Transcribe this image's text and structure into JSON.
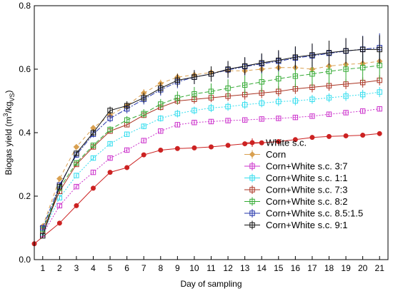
{
  "chart_data": {
    "type": "line",
    "xlabel": "Day of sampling",
    "ylabel_main": "Biogas yield (m",
    "ylabel_sup": "3",
    "ylabel_mid": "/kg",
    "ylabel_sub": "VS",
    "ylabel_end": ")",
    "xlim": [
      0.5,
      21.5
    ],
    "ylim": [
      0,
      0.8
    ],
    "xticks": [
      1,
      2,
      3,
      4,
      5,
      6,
      7,
      8,
      9,
      10,
      11,
      12,
      13,
      14,
      15,
      16,
      17,
      18,
      19,
      20,
      21
    ],
    "xtick_labels": [
      "1",
      "2",
      "3",
      "4",
      "5",
      "6",
      "7",
      "8",
      "9",
      "10",
      "11",
      "12",
      "13",
      "14",
      "15",
      "16",
      "17",
      "18",
      "19",
      "20",
      "21"
    ],
    "yticks": [
      0,
      0.2,
      0.4,
      0.6,
      0.8
    ],
    "ytick_labels": [
      "0.0",
      "0.2",
      "0.4",
      "0.6",
      "0.8"
    ],
    "legend_position": "bottom-right",
    "x": [
      0.5,
      1,
      1.5,
      2,
      2.5,
      3,
      3.5,
      4,
      4.5,
      5,
      5.5,
      6,
      6.5,
      7,
      7.5,
      8,
      8.5,
      9,
      9.5,
      10,
      10.5,
      11,
      11.5,
      12,
      12.5,
      13,
      13.5,
      14,
      14.5,
      15,
      15.5,
      16,
      16.5,
      17,
      17.5,
      18,
      18.5,
      19,
      19.5,
      20,
      20.5,
      21
    ],
    "series": [
      {
        "name": "White s.c.",
        "color": "#cc2222",
        "marker": "circle",
        "fill": true,
        "dash": "none",
        "values": [
          0.05,
          null,
          null,
          0.115,
          null,
          0.17,
          null,
          0.225,
          null,
          0.275,
          null,
          0.29,
          null,
          0.33,
          null,
          0.345,
          null,
          0.35,
          null,
          0.352,
          null,
          0.355,
          null,
          0.36,
          null,
          0.365,
          null,
          0.368,
          null,
          0.372,
          null,
          0.378,
          null,
          0.385,
          null,
          0.388,
          null,
          0.39,
          null,
          0.392,
          null,
          0.397
        ],
        "errors": [
          0.005,
          null,
          null,
          0.006,
          null,
          0.006,
          null,
          0.006,
          null,
          0.007,
          null,
          0.007,
          null,
          0.007,
          null,
          0.006,
          null,
          0.006,
          null,
          0.006,
          null,
          0.006,
          null,
          0.006,
          null,
          0.006,
          null,
          0.006,
          null,
          0.006,
          null,
          0.006,
          null,
          0.006,
          null,
          0.006,
          null,
          0.006,
          null,
          0.006,
          null,
          0.006
        ]
      },
      {
        "name": "Corn",
        "color": "#d9a050",
        "marker": "diamond",
        "fill": true,
        "dash": "5,4",
        "values": [
          null,
          0.105,
          null,
          0.255,
          null,
          0.355,
          null,
          0.415,
          null,
          0.455,
          null,
          0.485,
          null,
          0.525,
          null,
          0.555,
          null,
          0.575,
          null,
          0.582,
          null,
          0.59,
          null,
          0.595,
          null,
          0.595,
          null,
          0.6,
          null,
          0.605,
          null,
          0.605,
          null,
          0.6,
          null,
          0.61,
          null,
          0.615,
          null,
          0.618,
          null,
          0.625
        ],
        "errors": [
          null,
          0.005,
          null,
          0.008,
          null,
          0.008,
          null,
          0.008,
          null,
          0.01,
          null,
          0.012,
          null,
          0.012,
          null,
          0.012,
          null,
          0.012,
          null,
          0.012,
          null,
          0.012,
          null,
          0.012,
          null,
          0.012,
          null,
          0.012,
          null,
          0.012,
          null,
          0.012,
          null,
          0.012,
          null,
          0.012,
          null,
          0.012,
          null,
          0.012,
          null,
          0.012
        ]
      },
      {
        "name": "Corn+White s.c. 3:7",
        "color": "#cc33cc",
        "marker": "square",
        "fill": false,
        "dash": "2,2",
        "values": [
          null,
          0.08,
          null,
          0.17,
          null,
          0.23,
          null,
          0.275,
          null,
          0.32,
          null,
          0.345,
          null,
          0.375,
          null,
          0.405,
          null,
          0.425,
          null,
          0.432,
          null,
          0.435,
          null,
          0.438,
          null,
          0.44,
          null,
          0.443,
          null,
          0.445,
          null,
          0.448,
          null,
          0.452,
          null,
          0.458,
          null,
          0.463,
          null,
          0.468,
          null,
          0.475
        ],
        "errors": [
          null,
          0.005,
          null,
          0.006,
          null,
          0.006,
          null,
          0.007,
          null,
          0.008,
          null,
          0.008,
          null,
          0.008,
          null,
          0.008,
          null,
          0.008,
          null,
          0.008,
          null,
          0.008,
          null,
          0.008,
          null,
          0.008,
          null,
          0.008,
          null,
          0.008,
          null,
          0.008,
          null,
          0.008,
          null,
          0.008,
          null,
          0.008,
          null,
          0.008,
          null,
          0.008
        ]
      },
      {
        "name": "Corn+White s.c. 1:1",
        "color": "#33ddee",
        "marker": "square",
        "fill": false,
        "dash": "2,2",
        "values": [
          null,
          0.085,
          null,
          0.195,
          null,
          0.265,
          null,
          0.32,
          null,
          0.365,
          null,
          0.395,
          null,
          0.42,
          null,
          0.445,
          null,
          0.46,
          null,
          0.47,
          null,
          0.478,
          null,
          0.482,
          null,
          0.488,
          null,
          0.493,
          null,
          0.498,
          null,
          0.5,
          null,
          0.505,
          null,
          0.51,
          null,
          0.515,
          null,
          0.52,
          null,
          0.528
        ],
        "errors": [
          null,
          0.005,
          null,
          0.006,
          null,
          0.006,
          null,
          0.007,
          null,
          0.008,
          null,
          0.008,
          null,
          0.009,
          null,
          0.01,
          null,
          0.012,
          null,
          0.012,
          null,
          0.013,
          null,
          0.013,
          null,
          0.013,
          null,
          0.013,
          null,
          0.014,
          null,
          0.014,
          null,
          0.014,
          null,
          0.014,
          null,
          0.015,
          null,
          0.015,
          null,
          0.016
        ]
      },
      {
        "name": "Corn+White s.c. 7:3",
        "color": "#aa3322",
        "marker": "square",
        "fill": false,
        "dash": "none",
        "values": [
          null,
          0.09,
          null,
          0.215,
          null,
          0.3,
          null,
          0.355,
          null,
          0.405,
          null,
          0.425,
          null,
          0.455,
          null,
          0.48,
          null,
          0.5,
          null,
          0.505,
          null,
          0.51,
          null,
          0.515,
          null,
          0.52,
          null,
          0.525,
          null,
          0.53,
          null,
          0.538,
          null,
          0.543,
          null,
          0.548,
          null,
          0.553,
          null,
          0.558,
          null,
          0.565
        ],
        "errors": [
          null,
          0.005,
          null,
          0.006,
          null,
          0.006,
          null,
          0.007,
          null,
          0.008,
          null,
          0.008,
          null,
          0.008,
          null,
          0.01,
          null,
          0.012,
          null,
          0.014,
          null,
          0.014,
          null,
          0.015,
          null,
          0.016,
          null,
          0.016,
          null,
          0.016,
          null,
          0.016,
          null,
          0.016,
          null,
          0.016,
          null,
          0.016,
          null,
          0.016,
          null,
          0.016
        ]
      },
      {
        "name": "Corn+White s.c. 8:2",
        "color": "#33aa33",
        "marker": "square",
        "fill": false,
        "dash": "6,3",
        "values": [
          null,
          0.095,
          null,
          0.225,
          null,
          0.305,
          null,
          0.36,
          null,
          0.41,
          null,
          0.44,
          null,
          0.46,
          null,
          0.49,
          null,
          0.51,
          null,
          0.522,
          null,
          0.53,
          null,
          0.54,
          null,
          0.55,
          null,
          0.56,
          null,
          0.57,
          null,
          0.578,
          null,
          0.585,
          null,
          0.593,
          null,
          0.6,
          null,
          0.605,
          null,
          0.612
        ],
        "errors": [
          null,
          0.006,
          null,
          0.007,
          null,
          0.008,
          null,
          0.008,
          null,
          0.01,
          null,
          0.012,
          null,
          0.014,
          null,
          0.016,
          null,
          0.02,
          null,
          0.022,
          null,
          0.025,
          null,
          0.028,
          null,
          0.03,
          null,
          0.032,
          null,
          0.034,
          null,
          0.036,
          null,
          0.038,
          null,
          0.04,
          null,
          0.04,
          null,
          0.042,
          null,
          0.045
        ]
      },
      {
        "name": "Corn+White s.c. 8.5:1.5",
        "color": "#2233aa",
        "marker": "square",
        "fill": false,
        "dash": "7,2,2,2",
        "values": [
          null,
          0.1,
          null,
          0.235,
          null,
          0.33,
          null,
          0.395,
          null,
          0.445,
          null,
          0.475,
          null,
          0.505,
          null,
          0.535,
          null,
          0.56,
          null,
          0.575,
          null,
          0.585,
          null,
          0.598,
          null,
          0.608,
          null,
          0.617,
          null,
          0.625,
          null,
          0.635,
          null,
          0.642,
          null,
          0.65,
          null,
          0.657,
          null,
          0.663,
          null,
          0.668
        ],
        "errors": [
          null,
          0.006,
          null,
          0.008,
          null,
          0.009,
          null,
          0.01,
          null,
          0.012,
          null,
          0.014,
          null,
          0.016,
          null,
          0.018,
          null,
          0.02,
          null,
          0.022,
          null,
          0.024,
          null,
          0.026,
          null,
          0.028,
          null,
          0.03,
          null,
          0.032,
          null,
          0.034,
          null,
          0.036,
          null,
          0.038,
          null,
          0.04,
          null,
          0.042,
          null,
          0.045
        ]
      },
      {
        "name": "Corn+White s.c. 9:1",
        "color": "#111111",
        "marker": "square",
        "fill": false,
        "dash": "none",
        "values": [
          null,
          0.075,
          null,
          0.23,
          null,
          0.335,
          null,
          0.4,
          null,
          0.47,
          null,
          0.485,
          null,
          0.51,
          null,
          0.54,
          null,
          0.565,
          null,
          0.575,
          null,
          0.585,
          null,
          0.6,
          null,
          0.61,
          null,
          0.62,
          null,
          0.628,
          null,
          0.638,
          null,
          0.645,
          null,
          0.652,
          null,
          0.658,
          null,
          0.662,
          null,
          0.662
        ],
        "errors": [
          null,
          0.006,
          null,
          0.008,
          null,
          0.009,
          null,
          0.01,
          null,
          0.012,
          null,
          0.014,
          null,
          0.016,
          null,
          0.018,
          null,
          0.02,
          null,
          0.022,
          null,
          0.024,
          null,
          0.026,
          null,
          0.028,
          null,
          0.03,
          null,
          0.032,
          null,
          0.034,
          null,
          0.036,
          null,
          0.038,
          null,
          0.04,
          null,
          0.042,
          null,
          0.045
        ]
      }
    ]
  }
}
